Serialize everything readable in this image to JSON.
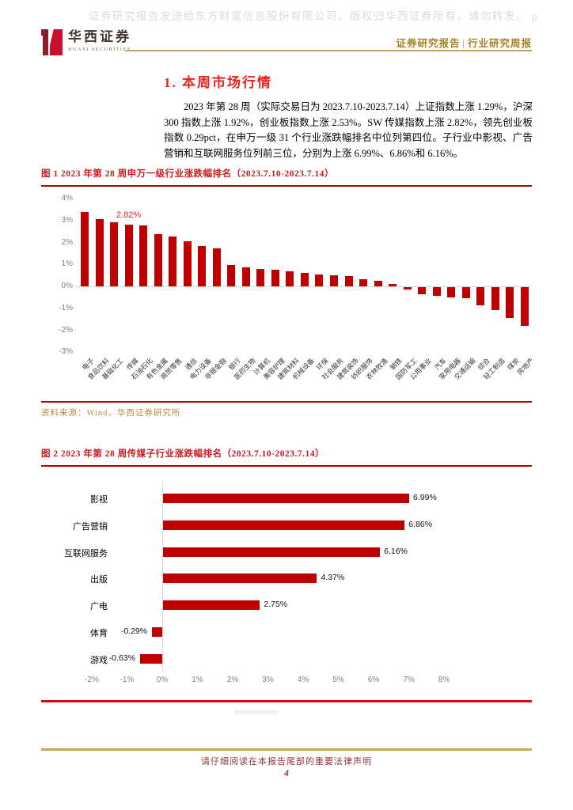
{
  "watermark": "证券研究报告发送给东方财富信息股份有限公司。版权归华西证券所有，请勿转发。 p",
  "header": {
    "logo_cn": "华西证券",
    "logo_en": "HUAXI SECURITIES",
    "doc_type": "证券研究报告",
    "divider": "|",
    "doc_subtype": "行业研究周报"
  },
  "section": {
    "heading": "1. 本周市场行情",
    "paragraph": "2023 年第 28 周（实际交易日为 2023.7.10-2023.7.14）上证指数上涨 1.29%，沪深 300 指数上涨 1.92%，创业板指数上涨 2.53%。SW 传媒指数上涨 2.82%，领先创业板指数 0.29pct，在申万一级 31 个行业涨跌幅排名中位列第四位。子行业中影视、广告营销和互联网服务位列前三位，分别为上涨 6.99%、6.86%和 6.16%。"
  },
  "figure1": {
    "caption": "图 1 2023 年第 28 周申万一级行业涨跌幅排名（2023.7.10-2023.7.14）",
    "source": "资料来源：Wind，华西证券研究所"
  },
  "figure2": {
    "caption": "图 2 2023 年第 28 周传媒子行业涨跌幅排名（2023.7.10-2023.7.14）"
  },
  "footer": {
    "legal": "请仔细阅读在本报告尾部的重要法律声明",
    "page": "4"
  },
  "colors": {
    "bar": "#C00000",
    "heading_red": "#E8251F",
    "caption_red": "#CE1A1E",
    "rule_red": "#B00706",
    "gold_line": "#C9A25E",
    "header_gold": "#A5802B",
    "source_gold": "#B68B3F",
    "legal_red": "#943634",
    "tick_gray": "#7F7F7F",
    "watermark_gray": "#DBDBDB"
  },
  "chart_data": [
    {
      "type": "bar",
      "orientation": "vertical",
      "title": "2023年第28周申万一级行业涨跌幅排名（2023.7.10-2023.7.14）",
      "unit": "%",
      "categories": [
        "电子",
        "食品饮料",
        "基础化工",
        "传媒",
        "石油石化",
        "有色金属",
        "商贸零售",
        "通信",
        "电力设备",
        "非银金融",
        "银行",
        "医药生物",
        "计算机",
        "美容护理",
        "建筑材料",
        "机械设备",
        "环保",
        "社会服务",
        "建筑装饰",
        "纺织服饰",
        "农林牧渔",
        "钢铁",
        "国防军工",
        "公用事业",
        "汽车",
        "家用电器",
        "交通运输",
        "综合",
        "轻工制造",
        "煤炭",
        "房地产"
      ],
      "values": [
        3.4,
        3.08,
        2.92,
        2.82,
        2.79,
        2.38,
        2.28,
        2.06,
        1.84,
        1.73,
        0.98,
        0.88,
        0.8,
        0.76,
        0.7,
        0.62,
        0.55,
        0.52,
        0.48,
        0.32,
        0.25,
        0.12,
        -0.12,
        -0.33,
        -0.4,
        -0.48,
        -0.52,
        -0.83,
        -1.05,
        -1.4,
        -1.75
      ],
      "ylim": [
        -3,
        4
      ],
      "ytick_values": [
        4,
        3,
        2,
        1,
        0,
        -1,
        -2,
        -3
      ],
      "ytick_labels": [
        "4%",
        "3%",
        "2%",
        "1%",
        "0%",
        "-1%",
        "-2%",
        "-3%"
      ],
      "data_label": {
        "category": "传媒",
        "text": "2.82%"
      },
      "grid": false,
      "legend": "none",
      "bar_color": "#C00000"
    },
    {
      "type": "bar",
      "orientation": "horizontal",
      "title": "2023年第28周传媒子行业涨跌幅排名（2023.7.10-2023.7.14）",
      "unit": "%",
      "categories": [
        "影视",
        "广告营销",
        "互联网服务",
        "出版",
        "广电",
        "体育",
        "游戏"
      ],
      "values": [
        6.99,
        6.86,
        6.16,
        4.37,
        2.75,
        -0.29,
        -0.63
      ],
      "value_labels": [
        "6.99%",
        "6.86%",
        "6.16%",
        "4.37%",
        "2.75%",
        "-0.29%",
        "-0.63%"
      ],
      "xlim": [
        -2,
        8
      ],
      "xtick_values": [
        -2,
        -1,
        0,
        1,
        2,
        3,
        4,
        5,
        6,
        7,
        8
      ],
      "xtick_labels": [
        "-2%",
        "-1%",
        "0%",
        "1%",
        "2%",
        "3%",
        "4%",
        "5%",
        "6%",
        "7%",
        "8%"
      ],
      "grid": false,
      "legend": "none",
      "bar_color": "#C00000"
    }
  ]
}
